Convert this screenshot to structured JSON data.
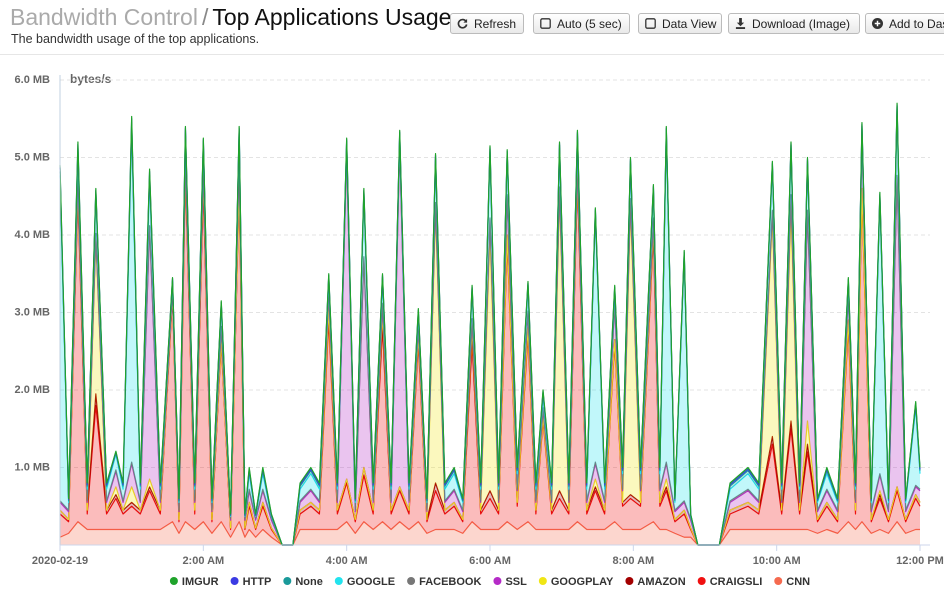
{
  "header": {
    "breadcrumb": "Bandwidth Control",
    "separator": "/",
    "title": "Top Applications Usage",
    "subtitle": "The bandwidth usage of the top applications."
  },
  "toolbar": {
    "buttons": [
      "Refresh",
      "Auto (5 sec)",
      "Data View",
      "Download (Image)",
      "Add to Dashboard"
    ]
  },
  "chart_data": {
    "type": "stacked-area",
    "y_label": "bytes/s",
    "grid": true,
    "legend": "bottom",
    "xlim": [
      0,
      12
    ],
    "xticks": [
      {
        "value": 0,
        "label": "2020-02-19"
      },
      {
        "value": 2,
        "label": "2:00 AM"
      },
      {
        "value": 4,
        "label": "4:00 AM"
      },
      {
        "value": 6,
        "label": "6:00 AM"
      },
      {
        "value": 8,
        "label": "8:00 AM"
      },
      {
        "value": 10,
        "label": "10:00 AM"
      },
      {
        "value": 12,
        "label": "12:00 PM"
      }
    ],
    "ylim": [
      0,
      6
    ],
    "yticks": [
      {
        "value": 1,
        "label": "1.0 MB"
      },
      {
        "value": 2,
        "label": "2.0 MB"
      },
      {
        "value": 3,
        "label": "3.0 MB"
      },
      {
        "value": 4,
        "label": "4.0 MB"
      },
      {
        "value": 5,
        "label": "5.0 MB"
      },
      {
        "value": 6,
        "label": "6.0 MB"
      }
    ],
    "x": [
      0,
      0.12,
      0.25,
      0.38,
      0.5,
      0.65,
      0.78,
      0.88,
      1,
      1.12,
      1.25,
      1.4,
      1.57,
      1.66,
      1.75,
      1.88,
      2,
      2.12,
      2.25,
      2.38,
      2.5,
      2.58,
      2.64,
      2.73,
      2.83,
      2.95,
      3.1,
      3.25,
      3.35,
      3.5,
      3.62,
      3.75,
      3.87,
      4,
      4.12,
      4.24,
      4.37,
      4.5,
      4.62,
      4.74,
      4.87,
      5,
      5.12,
      5.24,
      5.37,
      5.5,
      5.62,
      5.75,
      5.87,
      6,
      6.12,
      6.24,
      6.38,
      6.53,
      6.64,
      6.74,
      6.86,
      6.97,
      7.1,
      7.22,
      7.35,
      7.47,
      7.6,
      7.74,
      7.85,
      7.96,
      8.1,
      8.28,
      8.37,
      8.46,
      8.58,
      8.71,
      8.8,
      8.9,
      9.2,
      9.35,
      9.6,
      9.75,
      9.94,
      10.07,
      10.2,
      10.32,
      10.43,
      10.57,
      10.7,
      10.85,
      11,
      11.1,
      11.19,
      11.32,
      11.44,
      11.56,
      11.68,
      11.8,
      11.94,
      12
    ],
    "series": [
      {
        "name": "IMGUR",
        "color": "#1fa32b",
        "values": [
          0.03,
          0.01,
          0.03,
          0.02,
          0.02,
          0.02,
          0.01,
          0.02,
          0.03,
          0.02,
          0.03,
          0.02,
          0.01,
          0.01,
          0.02,
          0.02,
          0.02,
          0.01,
          0.02,
          0.01,
          0.02,
          0.01,
          0.02,
          0.01,
          0.02,
          0.01,
          0,
          0,
          0.02,
          0.02,
          0.02,
          0.02,
          0.02,
          0.02,
          0.01,
          0.02,
          0.02,
          0.02,
          0.02,
          0.02,
          0.02,
          0.02,
          0.01,
          0.02,
          0.02,
          0.02,
          0.01,
          0.02,
          0.02,
          0.02,
          0.02,
          0.02,
          0.02,
          0.02,
          0.02,
          0.02,
          0.02,
          0.02,
          0.02,
          0.02,
          0.02,
          0.02,
          0.02,
          0.02,
          0.02,
          0.02,
          0.02,
          0.02,
          0.02,
          0.02,
          0.01,
          0.02,
          0.01,
          0,
          0,
          0.02,
          0.02,
          0.02,
          0.02,
          0.02,
          0.02,
          0.02,
          0.02,
          0.01,
          0.02,
          0.01,
          0.02,
          0.02,
          0.02,
          0.01,
          0.02,
          0.01,
          0.02,
          0.01,
          0.02,
          0.02
        ]
      },
      {
        "name": "HTTP",
        "color": "#3b3be3",
        "values": [
          0.05,
          0.02,
          0.05,
          0.02,
          0.02,
          0.02,
          0.01,
          0.02,
          0.05,
          0.02,
          0.05,
          0.02,
          0.02,
          0.02,
          0.02,
          0.02,
          0.02,
          0.02,
          0.02,
          0.01,
          0.02,
          0.01,
          0.02,
          0.01,
          0.02,
          0.01,
          0,
          0,
          0.02,
          0.02,
          0.02,
          0.02,
          0.02,
          0.02,
          0.02,
          0.02,
          0.02,
          0.02,
          0.02,
          0.02,
          0.02,
          0.02,
          0.02,
          0.02,
          0.02,
          0.02,
          0.02,
          0.02,
          0.02,
          0.02,
          0.02,
          0.02,
          0.02,
          0.02,
          0.02,
          0.02,
          0.02,
          0.02,
          0.02,
          0.02,
          0.02,
          0.02,
          0.02,
          0.02,
          0.02,
          0.02,
          0.02,
          0.02,
          0.02,
          0.02,
          0.02,
          0.02,
          0.01,
          0,
          0,
          0.02,
          0.02,
          0.02,
          0.02,
          0.02,
          0.02,
          0.02,
          0.02,
          0.02,
          0.02,
          0.02,
          0.02,
          0.02,
          0.02,
          0.02,
          0.02,
          0.02,
          0.02,
          0.02,
          0.02,
          0.02
        ]
      },
      {
        "name": "None",
        "color": "#1a9a9a",
        "values": [
          0.05,
          0.02,
          0.05,
          0.04,
          0.04,
          0.04,
          0.02,
          0.04,
          0.08,
          0.04,
          0.05,
          0.04,
          0.02,
          0.02,
          0.04,
          0.04,
          0.04,
          0.02,
          0.04,
          0.01,
          0.04,
          0.01,
          0.04,
          0.01,
          0.04,
          0.01,
          0,
          0,
          0.04,
          0.04,
          0.04,
          0.04,
          0.04,
          0.04,
          0.02,
          0.04,
          0.04,
          0.04,
          0.04,
          0.04,
          0.04,
          0.04,
          0.02,
          0.04,
          0.04,
          0.04,
          0.02,
          0.04,
          0.04,
          0.04,
          0.04,
          0.04,
          0.04,
          0.04,
          0.04,
          0.04,
          0.04,
          0.04,
          0.04,
          0.04,
          0.04,
          0.04,
          0.04,
          0.04,
          0.04,
          0.04,
          0.04,
          0.04,
          0.04,
          0.04,
          0.02,
          0.04,
          0.01,
          0,
          0,
          0.04,
          0.04,
          0.04,
          0.04,
          0.04,
          0.04,
          0.04,
          0.04,
          0.02,
          0.04,
          0.02,
          0.04,
          0.04,
          0.04,
          0.02,
          0.04,
          0.02,
          0.04,
          0.02,
          0.04,
          0.04
        ]
      },
      {
        "name": "GOOGLE",
        "color": "#22e3ee",
        "values": [
          4.2,
          0.1,
          0.35,
          0.15,
          0.5,
          0.15,
          0.2,
          0.15,
          4.3,
          0.15,
          0.6,
          0.15,
          0.08,
          0.1,
          0.3,
          0.15,
          0.3,
          0.1,
          0.25,
          0.03,
          0.3,
          0.03,
          0.2,
          0.03,
          0.2,
          0.03,
          0,
          0,
          0.15,
          0.2,
          0.15,
          0.15,
          0.15,
          0.1,
          0.1,
          0.8,
          0.15,
          0.3,
          0.15,
          0.1,
          0.15,
          0.15,
          0.1,
          0.55,
          0.15,
          0.2,
          0.1,
          0.35,
          0.15,
          0.85,
          0.15,
          0.5,
          0.2,
          0.3,
          0.15,
          0.15,
          0.15,
          0.5,
          0.15,
          0.35,
          0.15,
          3.2,
          0.15,
          0.15,
          0.2,
          0.45,
          0.2,
          0.35,
          0.2,
          4.25,
          0.1,
          3.15,
          0.03,
          0,
          0,
          0.15,
          0.2,
          0.15,
          0.55,
          0.15,
          0.6,
          0.15,
          0.6,
          0.1,
          0.2,
          0.1,
          0.15,
          0.15,
          0.05,
          0.1,
          3.55,
          0.1,
          0.85,
          0.1,
          1.0,
          0.2
        ]
      },
      {
        "name": "FACEBOOK",
        "color": "#777777",
        "values": [
          0.02,
          0.02,
          0.02,
          0.02,
          0.02,
          0.02,
          0.02,
          0.02,
          0.02,
          0.02,
          0.02,
          0.02,
          0.02,
          0.02,
          0.02,
          0.02,
          0.02,
          0.02,
          0.02,
          0.02,
          0.02,
          0.02,
          0.02,
          0.02,
          0.02,
          0.02,
          0,
          0,
          0.02,
          0.02,
          0.02,
          0.02,
          0.02,
          0.02,
          0.02,
          0.02,
          0.02,
          0.02,
          0.02,
          0.02,
          0.02,
          0.02,
          0.02,
          0.02,
          0.02,
          0.02,
          0.02,
          0.02,
          0.02,
          0.02,
          0.02,
          0.02,
          0.02,
          0.02,
          0.02,
          0.02,
          0.02,
          0.02,
          0.02,
          0.02,
          0.02,
          0.02,
          0.02,
          0.02,
          0.02,
          0.02,
          0.02,
          0.02,
          0.02,
          0.02,
          0.02,
          0.02,
          0.02,
          0,
          0,
          0.02,
          0.02,
          0.02,
          0.02,
          0.02,
          0.02,
          0.02,
          0.02,
          0.02,
          0.02,
          0.02,
          0.02,
          0.02,
          0.02,
          0.02,
          0.02,
          0.02,
          0.02,
          0.02,
          0.02,
          0.02
        ]
      },
      {
        "name": "SSL",
        "color": "#b52bc7",
        "values": [
          0.1,
          0.1,
          0.1,
          0.1,
          0.05,
          0.1,
          0.2,
          0.1,
          0.3,
          0.1,
          3.25,
          0.1,
          0.05,
          0.1,
          0.1,
          0.1,
          0.1,
          0.1,
          0.15,
          0.1,
          0.35,
          0.1,
          0.15,
          0.1,
          0.15,
          0.1,
          0,
          0,
          0.1,
          0.15,
          0.1,
          0.2,
          0.1,
          4.2,
          0.1,
          2.7,
          0.1,
          0.1,
          0.1,
          4.4,
          0.1,
          0.1,
          0.1,
          0.1,
          0.1,
          0.15,
          0.1,
          0.1,
          0.1,
          0.2,
          0.1,
          0.5,
          0.15,
          0.2,
          0.1,
          0.1,
          0.1,
          0.1,
          0.1,
          0.1,
          0.1,
          0.2,
          0.1,
          0.45,
          0.15,
          0.1,
          0.15,
          0.1,
          0.15,
          0.2,
          0.1,
          0.1,
          0.1,
          0,
          0,
          0.1,
          0.15,
          0.1,
          0.1,
          0.1,
          0.2,
          0.1,
          2.7,
          0.1,
          0.15,
          0.1,
          0.3,
          0.1,
          0.7,
          0.1,
          0.2,
          0.1,
          4.0,
          0.1,
          0.1,
          0.15
        ]
      },
      {
        "name": "GOOGPLAY",
        "color": "#f0e615",
        "values": [
          0,
          0,
          0,
          0,
          2.0,
          0,
          0.1,
          0,
          0.2,
          0,
          0.1,
          0,
          0,
          0,
          0,
          0,
          0.05,
          0,
          0,
          0,
          0,
          0,
          0,
          0,
          0,
          0,
          0,
          0,
          0,
          0,
          0,
          0.05,
          0,
          0,
          0,
          0,
          0,
          0.1,
          0,
          0,
          0,
          0,
          0,
          3.5,
          0,
          0,
          0,
          0.1,
          0,
          3.3,
          0,
          0,
          0,
          0,
          0,
          0,
          0,
          3.8,
          0,
          0,
          0,
          0.1,
          0,
          0,
          0,
          3.7,
          0,
          0,
          0,
          0.1,
          0,
          0,
          0,
          0,
          0,
          0,
          0,
          0,
          2.8,
          0,
          2.7,
          0,
          0.3,
          0,
          0,
          0,
          0,
          0,
          0,
          0,
          0.05,
          0,
          0,
          0,
          0,
          0
        ]
      },
      {
        "name": "AMAZON",
        "color": "#a30000",
        "values": [
          0.05,
          0.03,
          0.1,
          0.05,
          0.15,
          0.05,
          0.05,
          0.05,
          0.05,
          0.05,
          0.05,
          0.05,
          0.05,
          0.03,
          0.1,
          0.05,
          0.1,
          0.03,
          0.05,
          0.02,
          0.05,
          0.02,
          0.05,
          0.02,
          0.05,
          0.02,
          0,
          0,
          0.05,
          0.05,
          0.05,
          0.1,
          0.05,
          0.05,
          0.03,
          0.1,
          0.05,
          0.1,
          0.05,
          0.05,
          0.05,
          0.1,
          0.03,
          0.1,
          0.05,
          0.05,
          0.03,
          0.1,
          0.05,
          0.1,
          0.05,
          0.1,
          0.05,
          0.1,
          0.05,
          0.05,
          0.05,
          0.1,
          0.05,
          0.1,
          0.05,
          0.05,
          0.05,
          0.05,
          0.05,
          0.05,
          0.05,
          0.1,
          0.05,
          0.05,
          0.03,
          0.05,
          0.02,
          0,
          0,
          0.05,
          0.05,
          0.05,
          0.1,
          0.05,
          0.1,
          0.05,
          0.1,
          0.03,
          0.05,
          0.03,
          0.1,
          0.05,
          0.1,
          0.03,
          0.05,
          0.03,
          0.05,
          0.03,
          0.05,
          0.05
        ]
      },
      {
        "name": "CRAIGSLI",
        "color": "#f01010",
        "values": [
          0.3,
          0.15,
          4.2,
          0.2,
          1.6,
          0.2,
          0.4,
          0.2,
          0.3,
          0.2,
          0.5,
          0.2,
          2.9,
          0.15,
          4.5,
          0.2,
          4.3,
          0.15,
          2.3,
          0.1,
          4.3,
          0.1,
          0.3,
          0.1,
          0.3,
          0.1,
          0,
          0,
          0.2,
          0.3,
          0.2,
          2.7,
          0.2,
          0.5,
          0.15,
          0.6,
          0.2,
          2.5,
          0.2,
          0.4,
          0.2,
          2.3,
          0.15,
          0.5,
          0.2,
          0.3,
          0.15,
          2.3,
          0.2,
          0.4,
          0.2,
          3.6,
          0.3,
          2.4,
          0.2,
          1.4,
          0.2,
          0.4,
          0.2,
          4.4,
          0.2,
          0.5,
          0.2,
          2.3,
          0.3,
          0.4,
          0.3,
          3.7,
          0.3,
          0.5,
          0.15,
          0.3,
          0.1,
          0,
          0,
          0.2,
          0.3,
          0.2,
          1.1,
          0.2,
          1.3,
          0.2,
          1.0,
          0.15,
          0.3,
          0.15,
          2.5,
          0.2,
          4.2,
          0.15,
          0.4,
          0.15,
          0.4,
          0.15,
          0.4,
          0.3
        ]
      },
      {
        "name": "CNN",
        "color": "#f56a4f",
        "values": [
          0.1,
          0.15,
          0.3,
          0.2,
          0.2,
          0.2,
          0.2,
          0.2,
          0.2,
          0.2,
          0.2,
          0.2,
          0.3,
          0.15,
          0.3,
          0.2,
          0.3,
          0.15,
          0.3,
          0.1,
          0.3,
          0.1,
          0.2,
          0.1,
          0.2,
          0.1,
          0,
          0,
          0.2,
          0.2,
          0.2,
          0.2,
          0.2,
          0.3,
          0.15,
          0.3,
          0.2,
          0.3,
          0.2,
          0.3,
          0.2,
          0.3,
          0.15,
          0.2,
          0.2,
          0.2,
          0.15,
          0.3,
          0.2,
          0.2,
          0.2,
          0.3,
          0.2,
          0.3,
          0.2,
          0.2,
          0.2,
          0.2,
          0.2,
          0.3,
          0.2,
          0.2,
          0.2,
          0.3,
          0.2,
          0.2,
          0.2,
          0.3,
          0.2,
          0.2,
          0.15,
          0.1,
          0.1,
          0,
          0,
          0.2,
          0.2,
          0.2,
          0.2,
          0.2,
          0.2,
          0.2,
          0.2,
          0.15,
          0.2,
          0.15,
          0.3,
          0.2,
          0.3,
          0.15,
          0.2,
          0.15,
          0.3,
          0.15,
          0.2,
          0.2
        ]
      }
    ]
  }
}
